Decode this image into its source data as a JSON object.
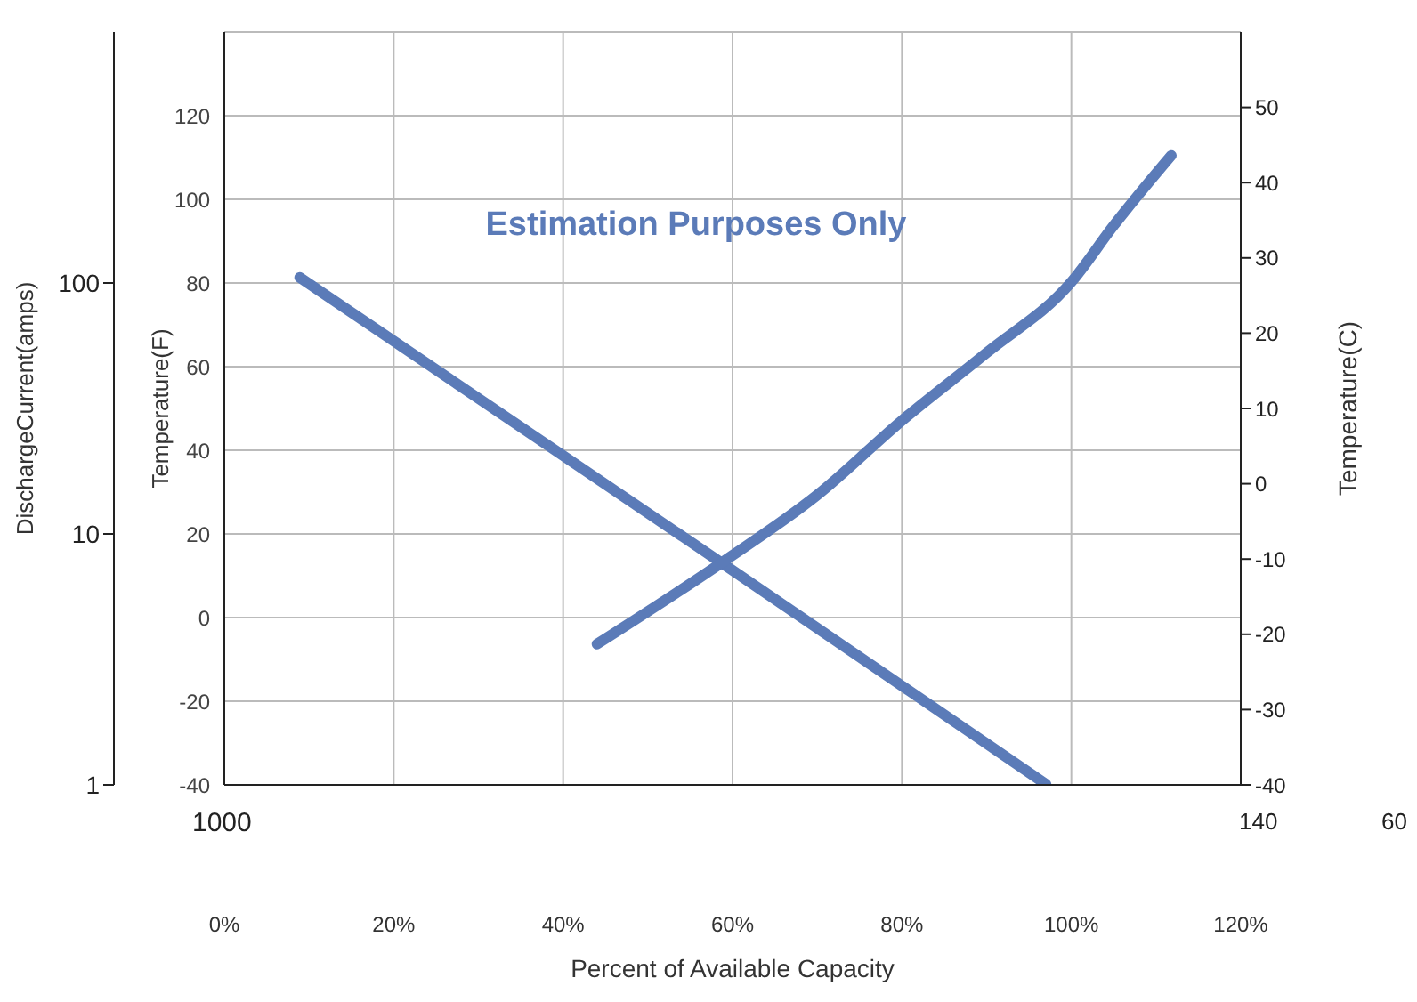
{
  "chart_data": {
    "type": "line",
    "title": "Estimation Purposes Only",
    "xlabel": "Percent of Available Capacity",
    "ylabel": "DischargeCurrent(amps)",
    "y2label": "Temperature(F)",
    "y3label": "Temperature(C)",
    "xlim": [
      0,
      120
    ],
    "xticks": [
      {
        "value": 0,
        "label": "0%"
      },
      {
        "value": 20,
        "label": "20%"
      },
      {
        "value": 40,
        "label": "40%"
      },
      {
        "value": 60,
        "label": "60%"
      },
      {
        "value": 80,
        "label": "80%"
      },
      {
        "value": 100,
        "label": "100%"
      },
      {
        "value": 120,
        "label": "120%"
      }
    ],
    "ylim": [
      1,
      1000
    ],
    "yticks": [
      1,
      10,
      100
    ],
    "log": "y",
    "y2lim": [
      -40,
      140
    ],
    "y2ticks": [
      -40,
      -20,
      0,
      20,
      40,
      60,
      80,
      100,
      120
    ],
    "y3lim": [
      -40,
      60
    ],
    "y3ticks": [
      -40,
      -30,
      -20,
      -10,
      0,
      10,
      20,
      30,
      40,
      50
    ],
    "grid": true,
    "line_style": "solid",
    "marker": "none",
    "series": [
      {
        "color": "#5b7bb8",
        "axis": "y3",
        "x": [
          8.9,
          58.7,
          97
        ],
        "values": [
          27.4,
          -10.5,
          -39.9
        ]
      },
      {
        "color": "#5b7bb8",
        "axis": "y3",
        "x": [
          44,
          58.7,
          70,
          80,
          90,
          100,
          105,
          111.8
        ],
        "values": [
          -21.3,
          -10.5,
          -1.5,
          8.4,
          17.4,
          26.8,
          34.3,
          43.6
        ]
      }
    ],
    "annotations": [
      "1000",
      "140",
      "60"
    ]
  }
}
